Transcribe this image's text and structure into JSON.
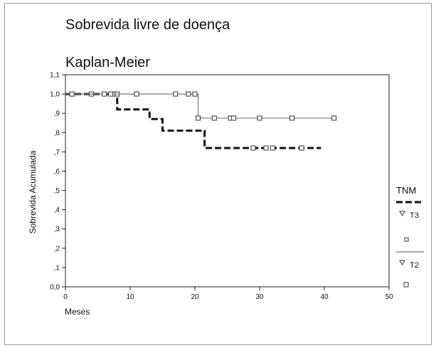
{
  "chart_data": {
    "type": "line",
    "step": true,
    "title": "Sobrevida livre de doença",
    "subtitle": "Kaplan-Meier",
    "xlabel": "Meses",
    "ylabel": "Sobrevida Acumulada",
    "xlim": [
      0,
      50
    ],
    "ylim": [
      0,
      1.1
    ],
    "x_ticks": [
      "0",
      "10",
      "20",
      "30",
      "40",
      "50"
    ],
    "y_ticks": [
      "0,0",
      ",1",
      ",2",
      ",3",
      ",4",
      ",5",
      ",6",
      ",7",
      ",8",
      ",9",
      "1,0",
      "1,1"
    ],
    "grid": false,
    "legend_position": "right",
    "legend_title": "TNM",
    "series": [
      {
        "name": "T3",
        "style": "dashed-thick",
        "color": "#111111",
        "steps": [
          [
            0,
            1.0
          ],
          [
            8,
            0.92
          ],
          [
            13,
            0.87
          ],
          [
            15,
            0.81
          ],
          [
            21.5,
            0.72
          ],
          [
            39.5,
            0.72
          ]
        ],
        "censored": [
          [
            1,
            1.0
          ],
          [
            4,
            1.0
          ],
          [
            7.5,
            1.0
          ],
          [
            8,
            1.0
          ],
          [
            29,
            0.72
          ],
          [
            31,
            0.72
          ],
          [
            32,
            0.72
          ],
          [
            36.5,
            0.72
          ]
        ]
      },
      {
        "name": "T2",
        "style": "solid-thin",
        "color": "#777777",
        "steps": [
          [
            0,
            1.0
          ],
          [
            20.5,
            0.875
          ],
          [
            41.5,
            0.875
          ]
        ],
        "censored": [
          [
            1,
            1.0
          ],
          [
            6,
            1.0
          ],
          [
            7,
            1.0
          ],
          [
            11,
            1.0
          ],
          [
            17,
            1.0
          ],
          [
            19,
            1.0
          ],
          [
            20,
            1.0
          ],
          [
            20.5,
            0.875
          ],
          [
            23,
            0.875
          ],
          [
            25.5,
            0.875
          ],
          [
            26,
            0.875
          ],
          [
            30,
            0.875
          ],
          [
            35,
            0.875
          ],
          [
            41.5,
            0.875
          ]
        ]
      }
    ]
  }
}
